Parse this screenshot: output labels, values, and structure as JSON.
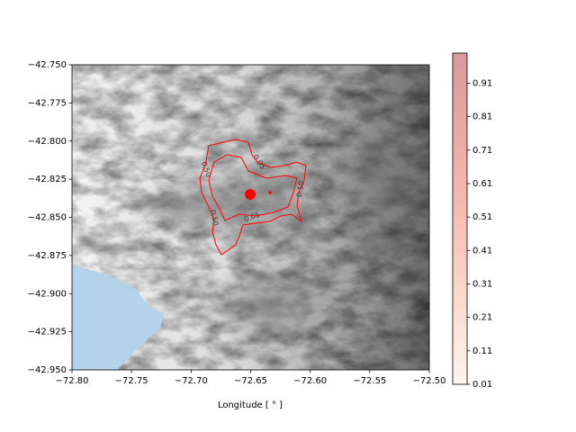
{
  "chart_data": {
    "type": "contour",
    "xlabel": "Longitude [ ° ]",
    "xlim": [
      -72.8,
      -72.5
    ],
    "xticks": [
      {
        "value": -72.8,
        "label": "−72.80"
      },
      {
        "value": -72.75,
        "label": "−72.75"
      },
      {
        "value": -72.7,
        "label": "−72.70"
      },
      {
        "value": -72.65,
        "label": "−72.65"
      },
      {
        "value": -72.6,
        "label": "−72.60"
      },
      {
        "value": -72.55,
        "label": "−72.55"
      },
      {
        "value": -72.5,
        "label": "−72.50"
      }
    ],
    "ylim": [
      -42.95,
      -42.75
    ],
    "yticks": [
      {
        "value": -42.75,
        "label": "−42.750"
      },
      {
        "value": -42.775,
        "label": "−42.775"
      },
      {
        "value": -42.8,
        "label": "−42.800"
      },
      {
        "value": -42.825,
        "label": "−42.825"
      },
      {
        "value": -42.85,
        "label": "−42.850"
      },
      {
        "value": -42.875,
        "label": "−42.875"
      },
      {
        "value": -42.9,
        "label": "−42.900"
      },
      {
        "value": -42.925,
        "label": "−42.925"
      },
      {
        "value": -42.95,
        "label": "−42.950"
      }
    ],
    "contour_levels": [
      0.05,
      {
        "value": 0.5,
        "label": "0.50"
      }
    ],
    "contour_color": "#ff0000",
    "colorbar": {
      "lim": [
        0.01,
        1.0
      ],
      "ticks": [
        0.01,
        0.11,
        0.21,
        0.31,
        0.41,
        0.51,
        0.61,
        0.71,
        0.81,
        0.91
      ],
      "colormap": "Reds"
    }
  }
}
